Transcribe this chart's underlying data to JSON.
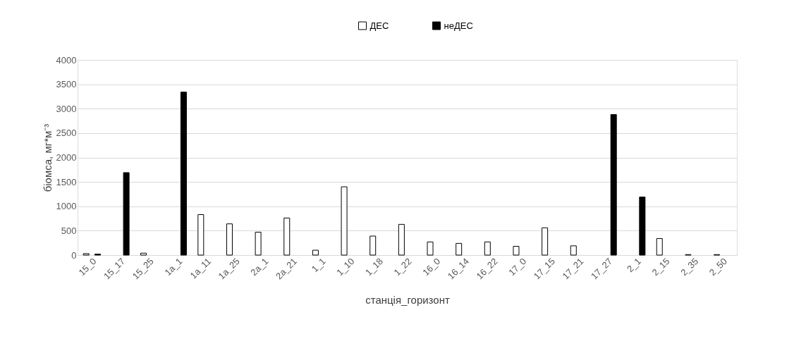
{
  "chart_data": {
    "type": "bar",
    "xlabel": "станція_горизонт",
    "ylabel": "біомса, мг*м⁻³",
    "categories": [
      "15_0",
      "15_17",
      "15_25",
      "1a_1",
      "1a_11",
      "1a_25",
      "2a_1",
      "2a_21",
      "1_1",
      "1_10",
      "1_18",
      "1_22",
      "16_0",
      "16_14",
      "16_22",
      "17_0",
      "17_15",
      "17_21",
      "17_27",
      "2_1",
      "2_15",
      "2_35",
      "2_50"
    ],
    "series": [
      {
        "name": "ДЕС",
        "color": "#ffffff",
        "values": [
          30,
          null,
          40,
          null,
          830,
          640,
          470,
          760,
          100,
          1400,
          390,
          630,
          270,
          240,
          270,
          180,
          560,
          190,
          null,
          null,
          340,
          10,
          10
        ]
      },
      {
        "name": "неДЕС",
        "color": "#000000",
        "values": [
          20,
          1690,
          null,
          3340,
          null,
          null,
          null,
          null,
          null,
          null,
          null,
          null,
          null,
          null,
          null,
          null,
          null,
          null,
          2880,
          1190,
          null,
          null,
          null
        ]
      }
    ],
    "ylim": [
      0,
      4000
    ],
    "yticks": [
      0,
      500,
      1000,
      1500,
      2000,
      2500,
      3000,
      3500,
      4000
    ],
    "grid": "y",
    "legend": "top"
  }
}
